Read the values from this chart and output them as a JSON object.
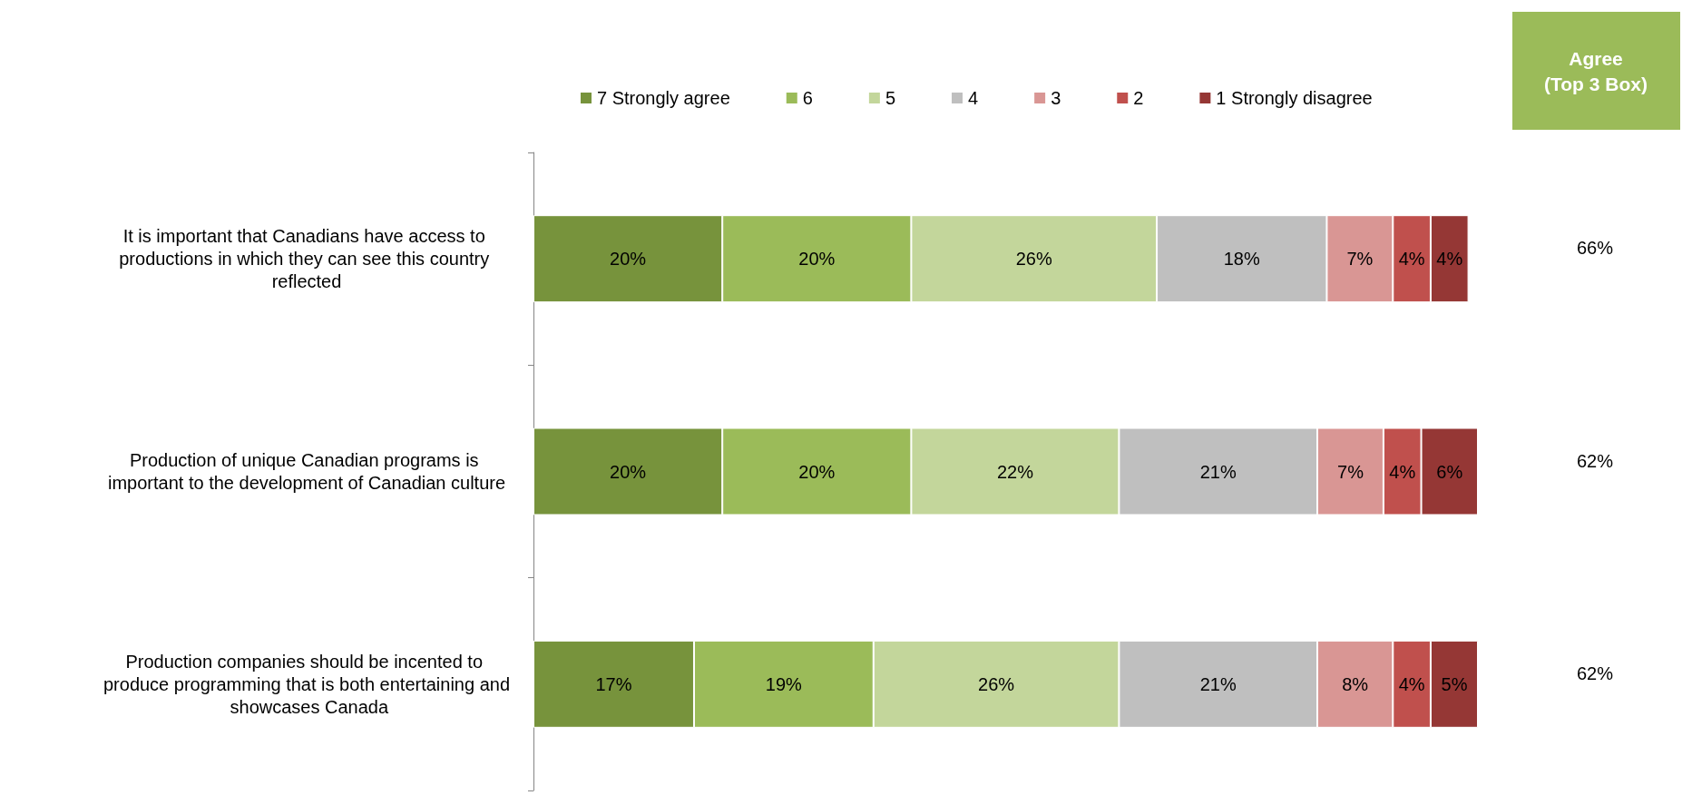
{
  "chart_data": {
    "type": "bar",
    "orientation": "horizontal",
    "stacked": true,
    "categories": [
      "It is important that Canadians have access to productions in which they can see this country reflected",
      "Production of unique Canadian programs is important to the development of Canadian culture",
      "Production companies should be incented to produce programming that is both entertaining and showcases Canada"
    ],
    "series": [
      {
        "name": "7 Strongly agree",
        "color": "#77933c",
        "values": [
          20,
          20,
          17
        ],
        "value_labels": [
          "20%",
          "20%",
          "17%"
        ]
      },
      {
        "name": "6",
        "color": "#9bbb59",
        "values": [
          20,
          20,
          19
        ],
        "value_labels": [
          "20%",
          "20%",
          "19%"
        ]
      },
      {
        "name": "5",
        "color": "#c3d69b",
        "values": [
          26,
          22,
          26
        ],
        "value_labels": [
          "26%",
          "22%",
          "26%"
        ]
      },
      {
        "name": "4",
        "color": "#bfbfbf",
        "values": [
          18,
          21,
          21
        ],
        "value_labels": [
          "18%",
          "21%",
          "21%"
        ]
      },
      {
        "name": "3",
        "color": "#d99694",
        "values": [
          7,
          7,
          8
        ],
        "value_labels": [
          "7%",
          "7%",
          "8%"
        ]
      },
      {
        "name": "2",
        "color": "#c0504d",
        "values": [
          4,
          4,
          4
        ],
        "value_labels": [
          "4%",
          "4%",
          "4%"
        ]
      },
      {
        "name": "1 Strongly disagree",
        "color": "#953735",
        "values": [
          4,
          6,
          5
        ],
        "value_labels": [
          "4%",
          "6%",
          "5%"
        ]
      }
    ],
    "xlim": [
      0,
      100
    ],
    "tick_labels": "y",
    "legend": "top",
    "annotations": [
      "Agree\n(Top 3 Box)",
      "66%",
      "62%",
      "62%"
    ]
  }
}
